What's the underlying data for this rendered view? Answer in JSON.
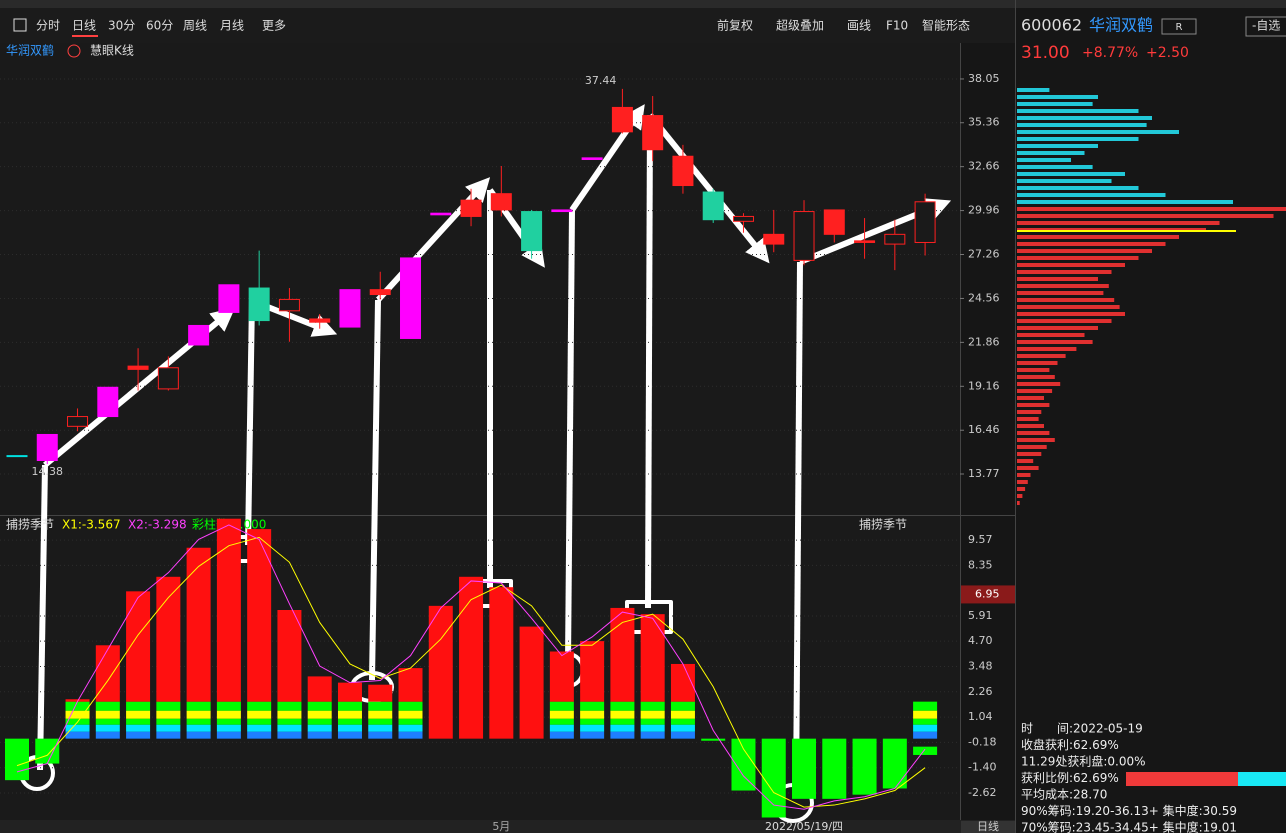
{
  "toolbar": {
    "left": [
      "分时",
      "日线",
      "30分",
      "60分",
      "周线",
      "月线",
      "更多"
    ],
    "right": [
      "前复权",
      "超级叠加",
      "画线",
      "F10",
      "智能形态"
    ]
  },
  "stock": {
    "code": "600062",
    "name": "华润双鹤",
    "badge": "R",
    "watch": "-自选",
    "price": "31.00",
    "change_pct": "+8.77%",
    "change": "+2.50"
  },
  "chart_data": {
    "type": "candlestick",
    "title": "华润双鹤",
    "subtitle": "慧眼K线",
    "categories": [
      null,
      null,
      null,
      null,
      null,
      null,
      null,
      null,
      null,
      null,
      null,
      null,
      null,
      null,
      null,
      null,
      "5月",
      null,
      null,
      null,
      null,
      null,
      null,
      null,
      null,
      null,
      "2022/05/19/四",
      null,
      null,
      null,
      null
    ],
    "candles": [
      {
        "open": 14.9,
        "close": 14.9,
        "high": 14.9,
        "low": 14.9,
        "color": "#00e0e0",
        "hollow": false
      },
      {
        "open": 14.6,
        "close": 16.2,
        "high": 16.2,
        "low": 14.38,
        "color": "#ff00ff",
        "hollow": false
      },
      {
        "open": 16.7,
        "close": 17.3,
        "high": 17.8,
        "low": 16.4,
        "color": "#ff2020",
        "hollow": true
      },
      {
        "open": 17.3,
        "close": 19.1,
        "high": 19.1,
        "low": 17.3,
        "color": "#ff00ff",
        "hollow": false
      },
      {
        "open": 20.2,
        "close": 20.4,
        "high": 21.5,
        "low": 18.9,
        "color": "#ff2020",
        "hollow": false
      },
      {
        "open": 19.0,
        "close": 20.3,
        "high": 21.0,
        "low": 18.9,
        "color": "#ff2020",
        "hollow": true
      },
      {
        "open": 21.7,
        "close": 22.9,
        "high": 22.9,
        "low": 21.7,
        "color": "#ff00ff",
        "hollow": false
      },
      {
        "open": 23.7,
        "close": 25.4,
        "high": 25.4,
        "low": 23.7,
        "color": "#ff00ff",
        "hollow": false
      },
      {
        "open": 25.2,
        "close": 23.2,
        "high": 27.5,
        "low": 22.9,
        "color": "#20d0a0",
        "hollow": false
      },
      {
        "open": 23.8,
        "close": 24.5,
        "high": 25.2,
        "low": 21.9,
        "color": "#ff2020",
        "hollow": true
      },
      {
        "open": 23.1,
        "close": 23.3,
        "high": 23.6,
        "low": 22.7,
        "color": "#ff2020",
        "hollow": false
      },
      {
        "open": 22.8,
        "close": 25.1,
        "high": 25.1,
        "low": 22.8,
        "color": "#ff00ff",
        "hollow": false
      },
      {
        "open": 24.8,
        "close": 25.1,
        "high": 26.2,
        "low": 24.5,
        "color": "#ff2020",
        "hollow": false
      },
      {
        "open": 22.1,
        "close": 27.05,
        "high": 27.05,
        "low": 22.1,
        "color": "#ff00ff",
        "hollow": false
      },
      {
        "open": 29.7,
        "close": 29.8,
        "high": 29.8,
        "low": 29.7,
        "color": "#ff00ff",
        "hollow": false
      },
      {
        "open": 29.6,
        "close": 30.6,
        "high": 31.3,
        "low": 29.0,
        "color": "#ff2020",
        "hollow": false
      },
      {
        "open": 30.0,
        "close": 31.0,
        "high": 32.7,
        "low": 29.6,
        "color": "#ff2020",
        "hollow": false
      },
      {
        "open": 29.9,
        "close": 27.5,
        "high": 30.0,
        "low": 27.0,
        "color": "#20d0a0",
        "hollow": false
      },
      {
        "open": 29.9,
        "close": 30.0,
        "high": 30.0,
        "low": 29.9,
        "color": "#ff00ff",
        "hollow": false
      },
      {
        "open": 33.1,
        "close": 33.2,
        "high": 33.2,
        "low": 33.1,
        "color": "#ff00ff",
        "hollow": false
      },
      {
        "open": 34.8,
        "close": 36.3,
        "high": 37.44,
        "low": 34.7,
        "color": "#ff2020",
        "hollow": false
      },
      {
        "open": 33.7,
        "close": 35.8,
        "high": 37.0,
        "low": 33.0,
        "color": "#ff2020",
        "hollow": false
      },
      {
        "open": 31.5,
        "close": 33.3,
        "high": 34.0,
        "low": 31.0,
        "color": "#ff2020",
        "hollow": false
      },
      {
        "open": 31.1,
        "close": 29.4,
        "high": 31.3,
        "low": 29.2,
        "color": "#20d0a0",
        "hollow": false
      },
      {
        "open": 29.3,
        "close": 29.6,
        "high": 29.8,
        "low": 28.6,
        "color": "#ff2020",
        "hollow": true
      },
      {
        "open": 27.9,
        "close": 28.5,
        "high": 30.0,
        "low": 27.4,
        "color": "#ff2020",
        "hollow": false
      },
      {
        "open": 26.9,
        "close": 29.9,
        "high": 30.6,
        "low": 26.6,
        "color": "#ff2020",
        "hollow": true
      },
      {
        "open": 28.5,
        "close": 30.0,
        "high": 30.0,
        "low": 28.0,
        "color": "#ff2020",
        "hollow": false
      },
      {
        "open": 28.0,
        "close": 28.1,
        "high": 29.5,
        "low": 27.0,
        "color": "#ff2020",
        "hollow": false
      },
      {
        "open": 27.9,
        "close": 28.5,
        "high": 29.4,
        "low": 26.3,
        "color": "#ff2020",
        "hollow": true
      },
      {
        "open": 28.0,
        "close": 30.5,
        "high": 31.0,
        "low": 27.2,
        "color": "#ff2020",
        "hollow": true
      }
    ],
    "annotations": [
      {
        "text": "37.44",
        "index": 20,
        "value": 37.44
      },
      {
        "text": "14.38",
        "index": 1,
        "value": 14.38
      }
    ],
    "ylim": [
      11.25,
      40.26
    ],
    "yticks": [
      38.05,
      35.36,
      32.66,
      29.96,
      27.26,
      24.56,
      21.86,
      19.16,
      16.46,
      13.77
    ]
  },
  "indicator": {
    "type": "bar",
    "title": "捕捞季节",
    "legend": [
      "X1:-3.567",
      "X2:-3.298",
      "彩柱数:0.000"
    ],
    "values": [
      -2.0,
      -1.2,
      1.9,
      4.5,
      7.1,
      7.8,
      9.2,
      10.6,
      10.1,
      6.2,
      3.0,
      2.7,
      2.6,
      3.4,
      6.4,
      7.8,
      7.3,
      5.4,
      4.2,
      4.7,
      6.3,
      6.0,
      3.6,
      -0.1,
      -2.5,
      -3.8,
      -2.9,
      -2.9,
      -2.7,
      -2.4,
      -0.4
    ],
    "rainbow": [
      false,
      false,
      true,
      true,
      true,
      true,
      true,
      true,
      true,
      true,
      true,
      true,
      true,
      true,
      false,
      false,
      false,
      false,
      true,
      true,
      true,
      true,
      true,
      false,
      false,
      false,
      false,
      false,
      false,
      false,
      true
    ],
    "series": [
      {
        "name": "X1",
        "color": "#ffff00",
        "values": [
          -1.3,
          -0.8,
          0.8,
          2.8,
          5.0,
          6.8,
          8.3,
          9.3,
          9.7,
          8.5,
          5.6,
          3.6,
          2.9,
          3.4,
          4.8,
          6.7,
          7.4,
          6.4,
          4.5,
          4.5,
          5.6,
          6.0,
          4.8,
          2.5,
          -0.5,
          -2.6,
          -3.3,
          -3.2,
          -2.9,
          -2.5,
          -1.4
        ]
      },
      {
        "name": "X2",
        "color": "#ff40ff",
        "values": [
          -1.6,
          -1.2,
          1.8,
          4.3,
          6.8,
          8.0,
          9.6,
          10.3,
          9.6,
          6.5,
          3.5,
          2.7,
          2.8,
          4.0,
          6.3,
          7.6,
          7.5,
          5.8,
          4.0,
          4.9,
          6.1,
          5.8,
          3.6,
          0.4,
          -1.8,
          -3.2,
          -3.4,
          -3.0,
          -2.8,
          -2.4,
          -0.5
        ]
      }
    ],
    "current": {
      "value": 6.95,
      "label": "6.95"
    },
    "ylim": [
      -3.92,
      10.73
    ],
    "yticks": [
      9.57,
      8.35,
      5.91,
      {
        "value": 4.7,
        "label": "4.70"
      },
      3.48,
      2.26,
      1.04,
      -0.18,
      {
        "value": -1.4,
        "label": "-1.40"
      },
      -2.62
    ]
  },
  "period_label": "日线",
  "chips": {
    "above": [
      12,
      30,
      28,
      45,
      50,
      48,
      60,
      45,
      30,
      25,
      20,
      28,
      40,
      35,
      45,
      55,
      80
    ],
    "below": [
      100,
      95,
      75,
      70,
      60,
      55,
      50,
      45,
      40,
      35,
      30,
      34,
      32,
      36,
      38,
      40,
      35,
      30,
      25,
      28,
      22,
      18,
      15,
      12,
      14,
      16,
      13,
      10,
      12,
      9,
      8,
      10,
      12,
      14,
      11,
      9,
      6,
      8,
      5,
      4,
      3,
      2,
      1
    ]
  },
  "info": [
    "时　　间:2022-05-19",
    "收盘获利:62.69%",
    "11.29处获利盘:0.00%",
    "获利比例:62.69%",
    "平均成本:28.70",
    "90%筹码:19.20-36.13+ 集中度:30.59",
    "70%筹码:23.45-34.45+ 集中度:19.01"
  ]
}
